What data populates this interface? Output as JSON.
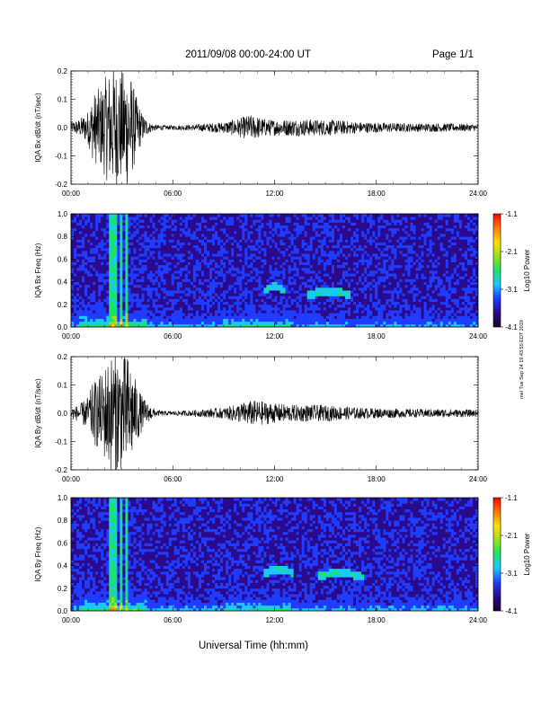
{
  "header": {
    "title": "2011/09/08  00:00-24:00 UT",
    "page": "Page 1/1"
  },
  "side_note": "mel Tue Sep 24 19:43:55 EDT 2019",
  "xlabel": "Universal Time (hh:mm)",
  "colors": {
    "trace": "#000000",
    "colorbar": [
      "#1a0033",
      "#2a0a8a",
      "#1f3cff",
      "#19c8ff",
      "#19e36a",
      "#9be11a",
      "#ffe000",
      "#ff7a00",
      "#ff0000"
    ]
  },
  "chart_data": [
    {
      "type": "line",
      "ylabel": "IQA Bx dB/dt (nT/sec)",
      "xlim": [
        0,
        24
      ],
      "ylim": [
        -0.2,
        0.2
      ],
      "x_ticks": [
        "00:00",
        "06:00",
        "12:00",
        "18:00",
        "24:00"
      ],
      "y_ticks": [
        "-0.2",
        "-0.1",
        "0.0",
        "0.1",
        "0.2"
      ],
      "envelope": {
        "x_hours": [
          0,
          0.5,
          1,
          1.3,
          1.8,
          2.2,
          2.6,
          3.0,
          3.4,
          3.8,
          4.2,
          4.6,
          5.0,
          5.5,
          6.0,
          7.0,
          8.0,
          9.0,
          10.0,
          10.5,
          11.0,
          11.5,
          12.0,
          13.0,
          14.0,
          15.0,
          16.0,
          17.0,
          18.0,
          20.0,
          22.0,
          24.0
        ],
        "amplitude": [
          0.02,
          0.03,
          0.06,
          0.12,
          0.15,
          0.2,
          0.22,
          0.2,
          0.22,
          0.12,
          0.05,
          0.02,
          0.01,
          0.008,
          0.008,
          0.01,
          0.015,
          0.02,
          0.035,
          0.045,
          0.04,
          0.03,
          0.028,
          0.03,
          0.03,
          0.028,
          0.025,
          0.02,
          0.018,
          0.015,
          0.015,
          0.012
        ]
      }
    },
    {
      "type": "heatmap",
      "ylabel": "IQA Bx Freq (Hz)",
      "colorbar_label": "Log10 Power",
      "colorbar_ticks": [
        "-1.1",
        "-2.1",
        "-3.1",
        "-4.1"
      ],
      "xlim": [
        0,
        24
      ],
      "ylim": [
        0,
        1.0
      ],
      "x_ticks": [
        "00:00",
        "06:00",
        "12:00",
        "18:00",
        "24:00"
      ],
      "y_ticks": [
        "0.0",
        "0.2",
        "0.4",
        "0.6",
        "0.8",
        "1.0"
      ],
      "vertical_stripes_hours": [
        2.4,
        2.7,
        3.0,
        3.3
      ],
      "arcs": [
        {
          "x_start": 11.4,
          "x_end": 12.6,
          "freq": 0.32
        },
        {
          "x_start": 14.0,
          "x_end": 16.5,
          "freq": 0.28
        }
      ]
    },
    {
      "type": "line",
      "ylabel": "IQA By dB/dt (nT/sec)",
      "xlim": [
        0,
        24
      ],
      "ylim": [
        -0.2,
        0.2
      ],
      "x_ticks": [
        "00:00",
        "06:00",
        "12:00",
        "18:00",
        "24:00"
      ],
      "y_ticks": [
        "-0.2",
        "-0.1",
        "0.0",
        "0.1",
        "0.2"
      ],
      "envelope": {
        "x_hours": [
          0,
          0.5,
          1,
          1.3,
          1.8,
          2.2,
          2.6,
          3.0,
          3.4,
          3.8,
          4.2,
          4.6,
          5.0,
          5.5,
          6.0,
          7.0,
          8.0,
          9.0,
          10.0,
          10.5,
          11.0,
          11.5,
          12.0,
          13.0,
          14.0,
          15.0,
          16.0,
          17.0,
          18.0,
          20.0,
          22.0,
          24.0
        ],
        "amplitude": [
          0.02,
          0.03,
          0.06,
          0.11,
          0.14,
          0.2,
          0.22,
          0.2,
          0.21,
          0.12,
          0.06,
          0.03,
          0.012,
          0.008,
          0.008,
          0.01,
          0.015,
          0.02,
          0.035,
          0.045,
          0.045,
          0.04,
          0.035,
          0.03,
          0.03,
          0.028,
          0.025,
          0.02,
          0.018,
          0.015,
          0.015,
          0.012
        ]
      }
    },
    {
      "type": "heatmap",
      "ylabel": "IQA By Freq (Hz)",
      "colorbar_label": "Log10 Power",
      "colorbar_ticks": [
        "-1.1",
        "-2.1",
        "-3.1",
        "-4.1"
      ],
      "xlim": [
        0,
        24
      ],
      "ylim": [
        0,
        1.0
      ],
      "x_ticks": [
        "00:00",
        "06:00",
        "12:00",
        "18:00",
        "24:00"
      ],
      "y_ticks": [
        "0.0",
        "0.2",
        "0.4",
        "0.6",
        "0.8",
        "1.0"
      ],
      "vertical_stripes_hours": [
        2.4,
        2.7,
        3.0,
        3.3
      ],
      "arcs": [
        {
          "x_start": 11.4,
          "x_end": 13.2,
          "freq": 0.33
        },
        {
          "x_start": 14.5,
          "x_end": 17.2,
          "freq": 0.3
        }
      ]
    }
  ]
}
